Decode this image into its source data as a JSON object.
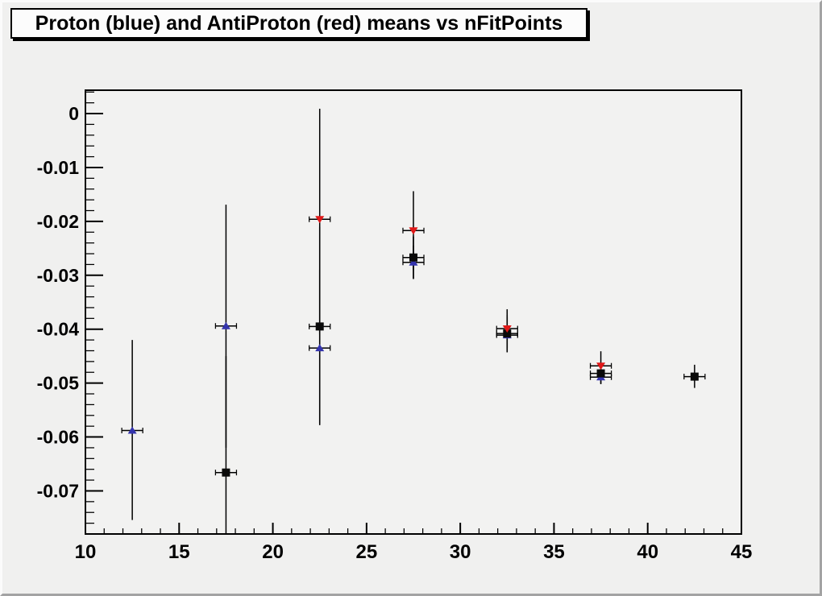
{
  "title": "Proton (blue) and AntiProton (red) means vs nFitPoints",
  "colors": {
    "proton_blue": "#3434ad",
    "antiproton_red": "#e01818",
    "black_marker": "#0a0a0a",
    "error_bar": "#000000",
    "frame_border": "#000000",
    "canvas_bg": "#f0f0ef",
    "title_box_bg": "#fcfcfc"
  },
  "chart_data": {
    "type": "scatter",
    "title": "Proton (blue) and AntiProton (red) means vs nFitPoints",
    "xlabel": "",
    "ylabel": "",
    "grid": false,
    "legend": "none (colors identified in title)",
    "xlim": [
      10,
      45
    ],
    "ylim": [
      -0.078,
      0.00434
    ],
    "x_axis": {
      "ticks": [
        {
          "value": 10,
          "label": "10"
        },
        {
          "value": 15,
          "label": "15"
        },
        {
          "value": 20,
          "label": "20"
        },
        {
          "value": 25,
          "label": "25"
        },
        {
          "value": 30,
          "label": "30"
        },
        {
          "value": 35,
          "label": "35"
        },
        {
          "value": 40,
          "label": "40"
        },
        {
          "value": 45,
          "label": "45"
        }
      ],
      "minor_step": 1
    },
    "y_axis": {
      "ticks": [
        {
          "value": 0,
          "label": "0"
        },
        {
          "value": -0.01,
          "label": "-0.01"
        },
        {
          "value": -0.02,
          "label": "-0.02"
        },
        {
          "value": -0.03,
          "label": "-0.03"
        },
        {
          "value": -0.04,
          "label": "-0.04"
        },
        {
          "value": -0.05,
          "label": "-0.05"
        },
        {
          "value": -0.06,
          "label": "-0.06"
        },
        {
          "value": -0.07,
          "label": "-0.07"
        }
      ],
      "minor_step": 0.002
    },
    "x_error_half_width": 0.56,
    "series": [
      {
        "name": "proton",
        "marker": "triangle-up",
        "color": "#3434ad",
        "points": [
          {
            "x": 12.5,
            "y": -0.0588,
            "y_err_hi": -0.042,
            "y_err_lo": -0.0754
          },
          {
            "x": 17.5,
            "y": -0.0394,
            "y_err_hi": -0.0169,
            "y_err_lo": -0.062
          },
          {
            "x": 22.5,
            "y": -0.0435,
            "y_err_hi": -0.029,
            "y_err_lo": -0.0578
          },
          {
            "x": 27.5,
            "y": -0.0276,
            "y_err_hi": -0.0245,
            "y_err_lo": -0.0307
          },
          {
            "x": 32.5,
            "y": -0.0411,
            "y_err_hi": -0.0378,
            "y_err_lo": -0.0443
          },
          {
            "x": 37.5,
            "y": -0.0489,
            "y_err_hi": -0.0476,
            "y_err_lo": -0.0502
          }
        ]
      },
      {
        "name": "black-squares",
        "marker": "square",
        "color": "#0a0a0a",
        "points": [
          {
            "x": 17.5,
            "y": -0.0666,
            "y_err_hi": -0.045,
            "y_err_lo": -0.078
          },
          {
            "x": 22.5,
            "y": -0.0395,
            "y_err_hi": -0.021,
            "y_err_lo": -0.0575
          },
          {
            "x": 27.5,
            "y": -0.0267,
            "y_err_hi": -0.0228,
            "y_err_lo": -0.0306
          },
          {
            "x": 32.5,
            "y": -0.0408,
            "y_err_hi": -0.0374,
            "y_err_lo": -0.0442
          },
          {
            "x": 37.5,
            "y": -0.0482,
            "y_err_hi": -0.0463,
            "y_err_lo": -0.0501
          },
          {
            "x": 42.5,
            "y": -0.0488,
            "y_err_hi": -0.0466,
            "y_err_lo": -0.0509
          }
        ]
      },
      {
        "name": "antiproton",
        "marker": "triangle-down",
        "color": "#e01818",
        "points": [
          {
            "x": 22.5,
            "y": -0.0196,
            "y_err_hi": 0.0009,
            "y_err_lo": -0.041
          },
          {
            "x": 27.5,
            "y": -0.0217,
            "y_err_hi": -0.0144,
            "y_err_lo": -0.029
          },
          {
            "x": 32.5,
            "y": -0.0399,
            "y_err_hi": -0.0363,
            "y_err_lo": -0.0435
          },
          {
            "x": 37.5,
            "y": -0.0468,
            "y_err_hi": -0.0441,
            "y_err_lo": -0.0495
          }
        ]
      }
    ]
  }
}
